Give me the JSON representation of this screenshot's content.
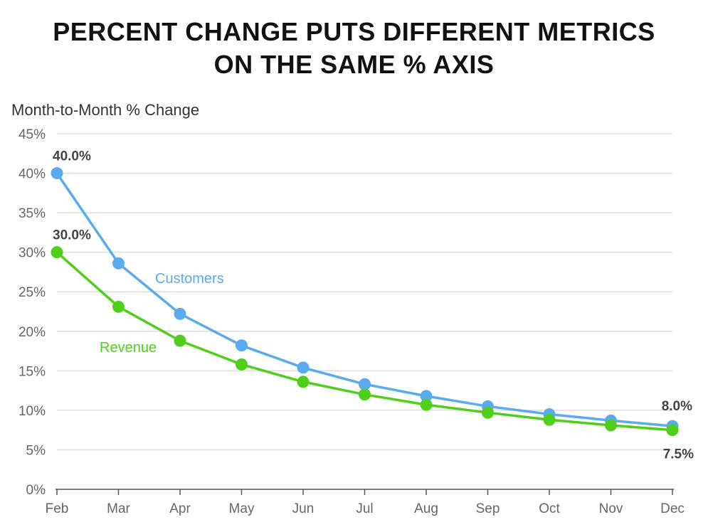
{
  "chart_data": {
    "type": "line",
    "title": [
      "PERCENT CHANGE PUTS DIFFERENT METRICS",
      "ON THE SAME % AXIS"
    ],
    "ylabel": "Month-to-Month % Change",
    "xlabel": "",
    "categories": [
      "Feb",
      "Mar",
      "Apr",
      "May",
      "Jun",
      "Jul",
      "Aug",
      "Sep",
      "Oct",
      "Nov",
      "Dec"
    ],
    "ylim": [
      0,
      45
    ],
    "yticks": [
      0,
      5,
      10,
      15,
      20,
      25,
      30,
      35,
      40,
      45
    ],
    "ytick_labels": [
      "0%",
      "5%",
      "10%",
      "15%",
      "20%",
      "25%",
      "30%",
      "35%",
      "40%",
      "45%"
    ],
    "grid": true,
    "series": [
      {
        "name": "Customers",
        "color": "#5aaaf0",
        "values": [
          40.0,
          28.6,
          22.2,
          18.2,
          15.4,
          13.3,
          11.8,
          10.5,
          9.5,
          8.7,
          8.0
        ]
      },
      {
        "name": "Revenue",
        "color": "#4fcf1a",
        "values": [
          30.0,
          23.1,
          18.8,
          15.8,
          13.6,
          12.0,
          10.7,
          9.7,
          8.8,
          8.1,
          7.5
        ]
      }
    ],
    "data_labels": [
      {
        "series": 0,
        "index": 0,
        "text": "40.0%"
      },
      {
        "series": 1,
        "index": 0,
        "text": "30.0%"
      },
      {
        "series": 0,
        "index": 10,
        "text": "8.0%"
      },
      {
        "series": 1,
        "index": 10,
        "text": "7.5%"
      }
    ]
  }
}
